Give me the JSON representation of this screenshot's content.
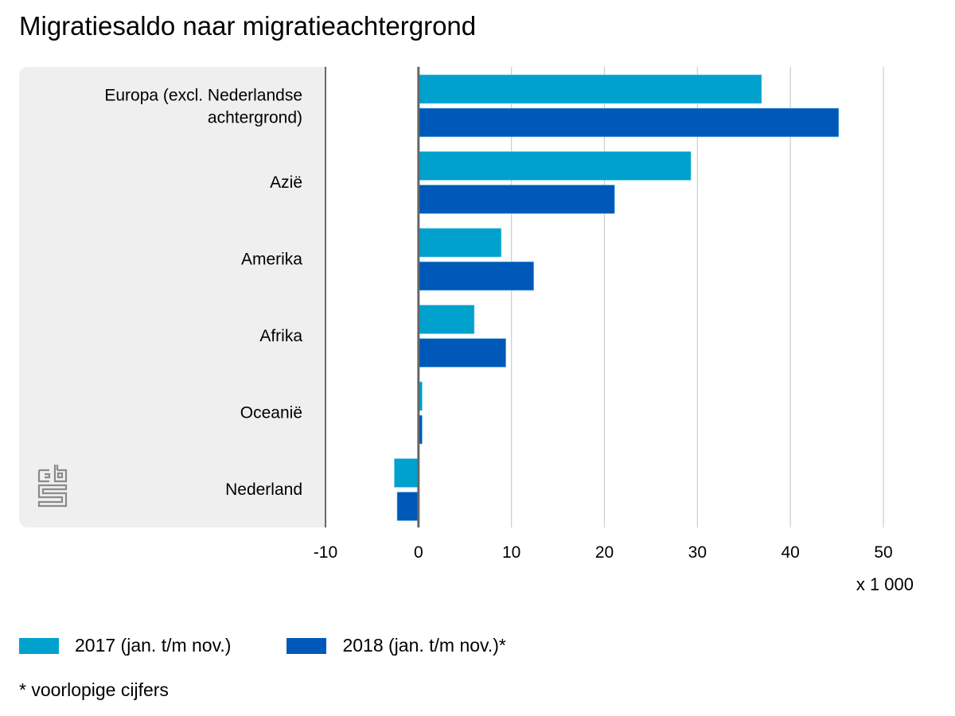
{
  "title": "Migratiesaldo naar migratieachtergrond",
  "unit_label": "x 1 000",
  "footnote": "* voorlopige cijfers",
  "logo": "cbs-logo-icon",
  "colors": {
    "panel": "#efefef",
    "s2017": "#00a1cd",
    "s2018": "#0058b8",
    "axis": "#666666",
    "grid": "#cccccc"
  },
  "chart_data": {
    "type": "bar",
    "orientation": "horizontal",
    "title": "Migratiesaldo naar migratieachtergrond",
    "xlabel": "x 1 000",
    "ylabel": "",
    "xlim": [
      -10,
      50
    ],
    "xticks": [
      -10,
      0,
      10,
      20,
      30,
      40,
      50
    ],
    "grid": true,
    "legend_position": "bottom-left",
    "categories": [
      "Europa (excl. Nederlandse achtergrond)",
      "Azië",
      "Amerika",
      "Afrika",
      "Oceanië",
      "Nederland"
    ],
    "category_lines": [
      [
        "Europa (excl. Nederlandse",
        "achtergrond)"
      ],
      [
        "Azië"
      ],
      [
        "Amerika"
      ],
      [
        "Afrika"
      ],
      [
        "Oceanië"
      ],
      [
        "Nederland"
      ]
    ],
    "series": [
      {
        "name": "2017 (jan. t/m nov.)",
        "values": [
          36.9,
          29.3,
          8.9,
          6.0,
          0.4,
          -2.6
        ]
      },
      {
        "name": "2018 (jan. t/m nov.)*",
        "values": [
          45.2,
          21.1,
          12.4,
          9.4,
          0.4,
          -2.3
        ]
      }
    ]
  }
}
